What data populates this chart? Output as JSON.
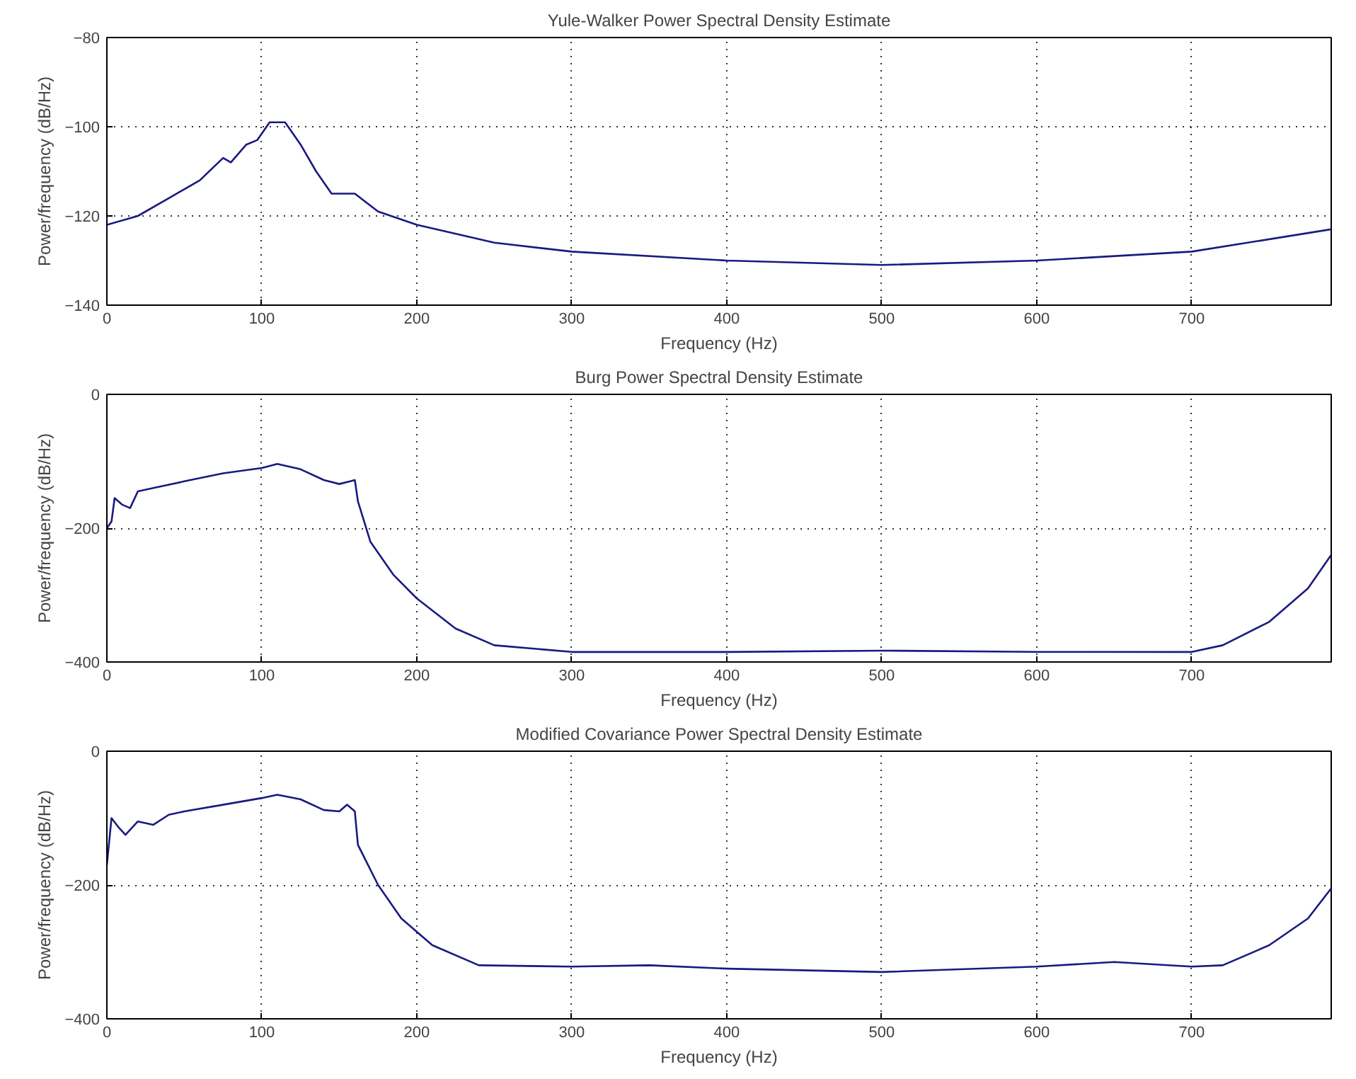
{
  "chart_data": [
    {
      "type": "line",
      "title": "Yule-Walker Power Spectral Density Estimate",
      "xlabel": "Frequency (Hz)",
      "ylabel": "Power/frequency (dB/Hz)",
      "xlim": [
        0,
        790
      ],
      "ylim": [
        -140,
        -80
      ],
      "xticks": [
        0,
        100,
        200,
        300,
        400,
        500,
        600,
        700
      ],
      "yticks": [
        -140,
        -120,
        -100,
        -80
      ],
      "grid": true,
      "line_style": "solid",
      "series": [
        {
          "color": "#1a1a80",
          "x": [
            0,
            20,
            40,
            60,
            75,
            80,
            90,
            97,
            105,
            115,
            125,
            135,
            145,
            160,
            175,
            200,
            250,
            300,
            400,
            500,
            600,
            700,
            790
          ],
          "values": [
            -122,
            -120,
            -116,
            -112,
            -107,
            -108,
            -104,
            -103,
            -99,
            -99,
            -104,
            -110,
            -115,
            -115,
            -119,
            -122,
            -126,
            -128,
            -130,
            -131,
            -130,
            -128,
            -123
          ]
        }
      ]
    },
    {
      "type": "line",
      "title": "Burg Power Spectral Density Estimate",
      "xlabel": "Frequency (Hz)",
      "ylabel": "Power/frequency (dB/Hz)",
      "xlim": [
        0,
        790
      ],
      "ylim": [
        -400,
        0
      ],
      "xticks": [
        0,
        100,
        200,
        300,
        400,
        500,
        600,
        700
      ],
      "yticks": [
        -400,
        -200,
        0
      ],
      "grid": true,
      "line_style": "solid",
      "series": [
        {
          "color": "#1a1a80",
          "x": [
            0,
            3,
            5,
            10,
            15,
            20,
            30,
            50,
            75,
            100,
            110,
            125,
            140,
            150,
            157,
            160,
            162,
            170,
            185,
            200,
            225,
            250,
            300,
            400,
            500,
            600,
            700,
            720,
            750,
            775,
            790
          ],
          "values": [
            -200,
            -190,
            -155,
            -165,
            -170,
            -145,
            -140,
            -130,
            -118,
            -110,
            -104,
            -112,
            -128,
            -134,
            -130,
            -128,
            -160,
            -220,
            -270,
            -305,
            -350,
            -375,
            -385,
            -385,
            -383,
            -385,
            -385,
            -375,
            -340,
            -290,
            -240
          ]
        }
      ]
    },
    {
      "type": "line",
      "title": "Modified Covariance Power Spectral Density Estimate",
      "xlabel": "Frequency (Hz)",
      "ylabel": "Power/frequency (dB/Hz)",
      "xlim": [
        0,
        790
      ],
      "ylim": [
        -400,
        0
      ],
      "xticks": [
        0,
        100,
        200,
        300,
        400,
        500,
        600,
        700
      ],
      "yticks": [
        -400,
        -200,
        0
      ],
      "grid": true,
      "line_style": "solid",
      "series": [
        {
          "color": "#1a1a80",
          "x": [
            0,
            3,
            8,
            12,
            20,
            30,
            40,
            50,
            75,
            100,
            110,
            125,
            140,
            150,
            155,
            160,
            162,
            175,
            190,
            210,
            240,
            300,
            350,
            400,
            500,
            600,
            650,
            700,
            720,
            750,
            775,
            790
          ],
          "values": [
            -170,
            -100,
            -115,
            -125,
            -105,
            -110,
            -95,
            -90,
            -80,
            -70,
            -65,
            -72,
            -88,
            -90,
            -80,
            -90,
            -140,
            -200,
            -250,
            -290,
            -320,
            -322,
            -320,
            -325,
            -330,
            -322,
            -315,
            -322,
            -320,
            -290,
            -250,
            -205
          ]
        }
      ]
    }
  ]
}
